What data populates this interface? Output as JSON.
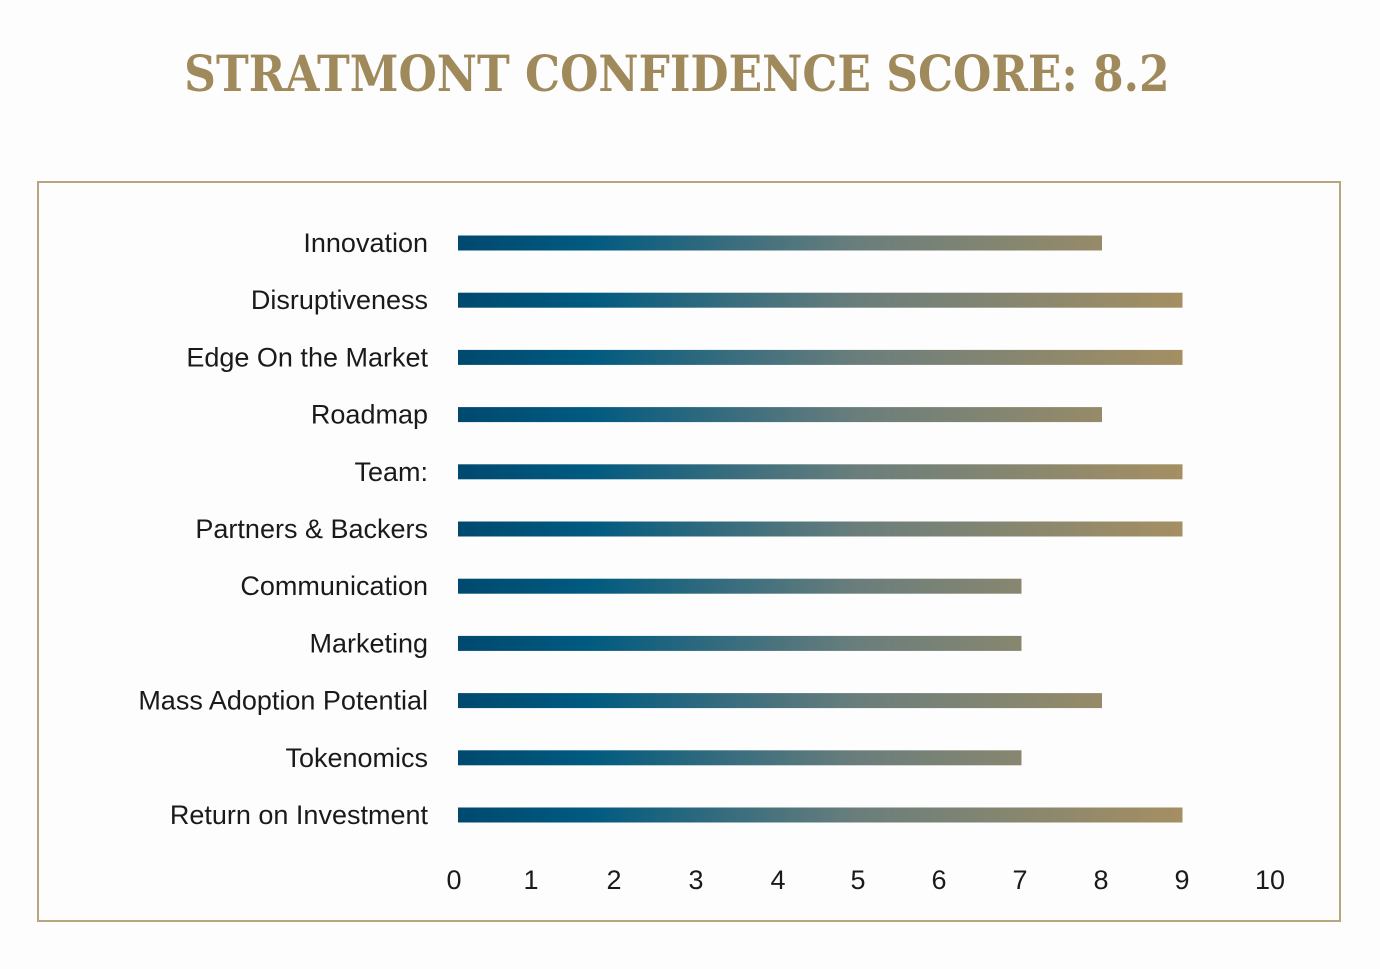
{
  "chart_data": {
    "type": "bar",
    "orientation": "horizontal",
    "title": "STRATMONT CONFIDENCE SCORE: 8.2",
    "categories": [
      "Innovation",
      "Disruptiveness",
      "Edge On the Market",
      "Roadmap",
      "Team:",
      "Partners & Backers",
      "Communication",
      "Marketing",
      "Mass Adoption Potential",
      "Tokenomics",
      "Return on Investment"
    ],
    "values": [
      8,
      9,
      9,
      8,
      9,
      9,
      7,
      7,
      8,
      7,
      9
    ],
    "xlim": [
      0,
      10
    ],
    "xticks": [
      "0",
      "1",
      "2",
      "3",
      "4",
      "5",
      "6",
      "7",
      "8",
      "9",
      "10"
    ],
    "xlabel": "",
    "ylabel": "",
    "grid": false,
    "legend": "none"
  },
  "colors": {
    "title": "#a08a5c",
    "frame": "#b8a680",
    "bar_start": "#00496f",
    "bar_mid": "#005a80",
    "bar_end": "#a58f62",
    "text": "#1a1a1a"
  }
}
